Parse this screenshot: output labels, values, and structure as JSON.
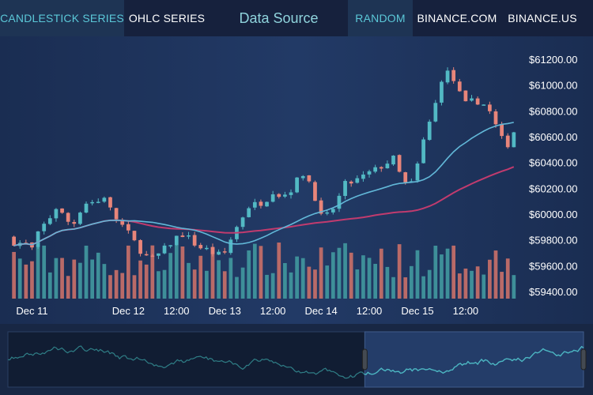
{
  "tabs_left": [
    {
      "label": "CANDLESTICK SERIES",
      "active": true
    },
    {
      "label": "OHLC SERIES",
      "active": false
    }
  ],
  "title": "Data Source",
  "tabs_right": [
    {
      "label": "RANDOM",
      "active": true
    },
    {
      "label": "BINANCE.COM",
      "active": false
    },
    {
      "label": "BINANCE.US",
      "active": false
    }
  ],
  "colors": {
    "up": "#52b9c4",
    "down": "#e8857a",
    "volume_up": "#3e8f99",
    "volume_down": "#b96a68",
    "ma_fast": "#62b8d8",
    "ma_slow": "#c13b6e",
    "navigator_line": "#4cb6c2"
  },
  "chart_data": {
    "type": "candlestick",
    "ylim": [
      59400,
      61200
    ],
    "y_ticks": [
      "$61200.00",
      "$61000.00",
      "$60800.00",
      "$60600.00",
      "$60400.00",
      "$60200.00",
      "$60000.00",
      "$59800.00",
      "$59600.00",
      "$59400.00"
    ],
    "x_tick_labels": [
      "Dec 11",
      "Dec 12",
      "12:00",
      "Dec 13",
      "12:00",
      "Dec 14",
      "12:00",
      "Dec 15",
      "12:00"
    ],
    "x_tick_hours": [
      0,
      24,
      36,
      48,
      60,
      72,
      84,
      96,
      108
    ],
    "x_range_hours": [
      -6,
      122
    ],
    "candle_period_hours": 1.5,
    "close_anchors": [
      [
        -6,
        59820
      ],
      [
        -4,
        59770
      ],
      [
        -2,
        59780
      ],
      [
        0,
        59730
      ],
      [
        2,
        59880
      ],
      [
        4,
        59950
      ],
      [
        6,
        60050
      ],
      [
        8,
        59980
      ],
      [
        10,
        59900
      ],
      [
        12,
        60030
      ],
      [
        14,
        60110
      ],
      [
        16,
        60080
      ],
      [
        18,
        60140
      ],
      [
        20,
        60000
      ],
      [
        22,
        59930
      ],
      [
        24,
        59850
      ],
      [
        26,
        59760
      ],
      [
        28,
        59680
      ],
      [
        30,
        59650
      ],
      [
        32,
        59700
      ],
      [
        34,
        59760
      ],
      [
        36,
        59820
      ],
      [
        38,
        59850
      ],
      [
        40,
        59780
      ],
      [
        42,
        59740
      ],
      [
        44,
        59720
      ],
      [
        46,
        59680
      ],
      [
        48,
        59700
      ],
      [
        50,
        59840
      ],
      [
        52,
        59960
      ],
      [
        54,
        60060
      ],
      [
        56,
        60080
      ],
      [
        58,
        60100
      ],
      [
        60,
        60180
      ],
      [
        62,
        60140
      ],
      [
        64,
        60170
      ],
      [
        66,
        60260
      ],
      [
        68,
        60330
      ],
      [
        70,
        60180
      ],
      [
        72,
        59980
      ],
      [
        74,
        59990
      ],
      [
        76,
        60100
      ],
      [
        78,
        60230
      ],
      [
        80,
        60250
      ],
      [
        82,
        60280
      ],
      [
        84,
        60320
      ],
      [
        86,
        60350
      ],
      [
        88,
        60390
      ],
      [
        90,
        60430
      ],
      [
        92,
        60280
      ],
      [
        94,
        60190
      ],
      [
        96,
        60380
      ],
      [
        98,
        60630
      ],
      [
        100,
        60790
      ],
      [
        102,
        61050
      ],
      [
        104,
        61110
      ],
      [
        106,
        60960
      ],
      [
        108,
        60850
      ],
      [
        110,
        60880
      ],
      [
        112,
        60870
      ],
      [
        114,
        60790
      ],
      [
        116,
        60650
      ],
      [
        118,
        60510
      ],
      [
        120,
        60640
      ]
    ],
    "volume_range": [
      0,
      1
    ],
    "series": [
      {
        "name": "",
        "kind": "candles"
      },
      {
        "name": "",
        "kind": "moving-average-fast",
        "period": 20
      },
      {
        "name": "",
        "kind": "moving-average-slow",
        "period": 50
      },
      {
        "name": "",
        "kind": "volume"
      }
    ],
    "navigator_window": [
      0.62,
      1.0
    ]
  }
}
